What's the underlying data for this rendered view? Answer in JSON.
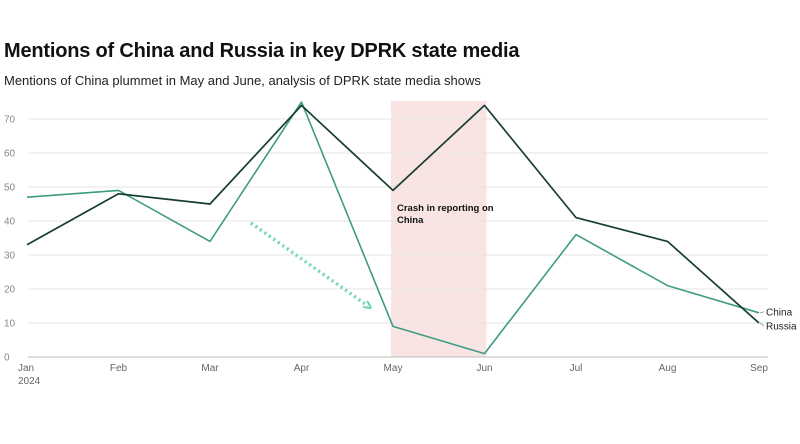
{
  "title": "Mentions of China and Russia in key DPRK state media",
  "subtitle": "Mentions of China plummet in May and June, analysis of DPRK state media shows",
  "colors": {
    "china": "#3f9b84",
    "russia": "#173d33",
    "highlight": "#f8e4e2",
    "arrow": "#6ad8a8",
    "grid": "#e6e6e6"
  },
  "chart_data": {
    "type": "line",
    "x": [
      "Jan",
      "Feb",
      "Mar",
      "Apr",
      "May",
      "Jun",
      "Jul",
      "Aug",
      "Sep"
    ],
    "x_sublabel": "2024",
    "ylim": [
      0,
      70
    ],
    "yticks": [
      0,
      10,
      20,
      30,
      40,
      50,
      60,
      70
    ],
    "grid": true,
    "series": [
      {
        "name": "China",
        "values": [
          47,
          49,
          34,
          75,
          9,
          1,
          36,
          21,
          13
        ]
      },
      {
        "name": "Russia",
        "values": [
          33,
          48,
          45,
          74,
          49,
          74,
          41,
          34,
          10
        ]
      }
    ],
    "highlight_range": [
      "May",
      "Jun"
    ],
    "annotation": {
      "lines": [
        "Crash in reporting on",
        "China"
      ]
    }
  }
}
